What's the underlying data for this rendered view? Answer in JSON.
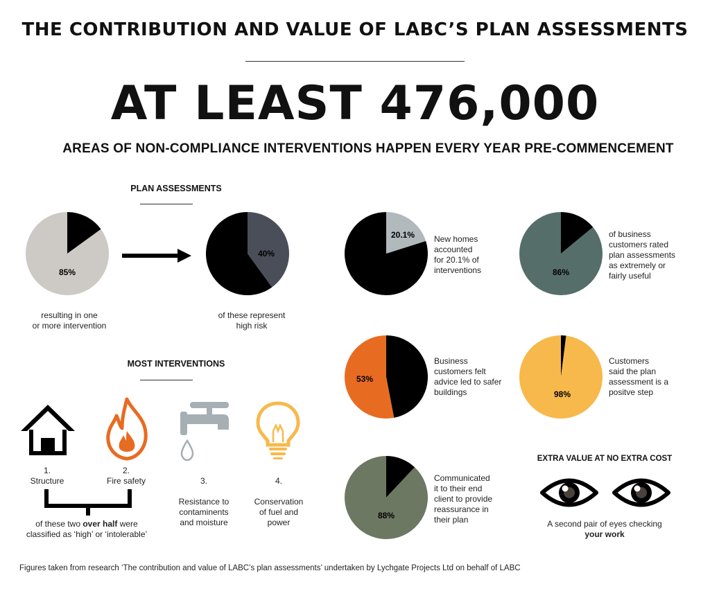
{
  "header": {
    "title": "THE CONTRIBUTION AND VALUE OF LABC’S PLAN ASSESSMENTS",
    "headline": "AT LEAST 476,000",
    "subheadline": "AREAS OF NON-COMPLIANCE INTERVENTIONS HAPPEN EVERY YEAR PRE-COMMENCEMENT"
  },
  "plan_assessments": {
    "heading": "PLAN ASSESSMENTS",
    "caption_1": "resulting in one\nor more intervention",
    "caption_2": "of these represent\nhigh risk"
  },
  "most_interventions": {
    "heading": "MOST INTERVENTIONS",
    "items": [
      {
        "number": "1.",
        "label": "Structure",
        "icon": "house-icon"
      },
      {
        "number": "2.",
        "label": "Fire safety",
        "icon": "flame-icon"
      },
      {
        "number": "3.",
        "label": "Resistance to\ncontaminents\nand moisture",
        "icon": "tap-icon"
      },
      {
        "number": "4.",
        "label": "Conservation\nof fuel and\npower",
        "icon": "lightbulb-icon"
      }
    ],
    "note_pre": "of these two ",
    "note_bold": "over half",
    "note_post": " were\nclassified as ‘high’ or ‘intolerable’"
  },
  "extra_value": {
    "heading": "EXTRA VALUE AT NO EXTRA COST",
    "caption_1": "A second pair of eyes checking",
    "caption_bold": "your work",
    "icon": "eye-icon"
  },
  "footer": "Figures taken from research ‘The contribution and value of LABC’s plan assessments’ undertaken by Lychgate Projects Ltd on behalf of LABC",
  "chart_data": [
    {
      "type": "pie",
      "id": "interventions",
      "values": [
        85,
        15
      ],
      "colors": [
        "#cdc9c5",
        "#000000"
      ],
      "label": "85%",
      "caption": "resulting in one\nor more intervention"
    },
    {
      "type": "pie",
      "id": "high-risk",
      "values": [
        40,
        60
      ],
      "colors": [
        "#4a4e58",
        "#000000"
      ],
      "label": "40%",
      "caption": "of these represent\nhigh risk"
    },
    {
      "type": "pie",
      "id": "new-homes",
      "values": [
        20.1,
        79.9
      ],
      "colors": [
        "#b1b9bd",
        "#000000"
      ],
      "label": "20.1%",
      "caption": "New homes\naccounted\nfor 20.1% of\ninterventions"
    },
    {
      "type": "pie",
      "id": "useful",
      "values": [
        86,
        14
      ],
      "colors": [
        "#566e69",
        "#000000"
      ],
      "label": "86%",
      "caption": "of business\ncustomers rated\nplan assessments\nas extremely or\nfairly useful"
    },
    {
      "type": "pie",
      "id": "safer-buildings",
      "values": [
        53,
        47
      ],
      "colors": [
        "#e86b22",
        "#000000"
      ],
      "label": "53%",
      "caption": "Business\ncustomers felt\nadvice led to safer\nbuildings"
    },
    {
      "type": "pie",
      "id": "positive-step",
      "values": [
        98,
        2
      ],
      "colors": [
        "#f7b94b",
        "#000000"
      ],
      "label": "98%",
      "caption": "Customers\nsaid the plan\nassessment is a\npositve step"
    },
    {
      "type": "pie",
      "id": "reassurance",
      "values": [
        88,
        12
      ],
      "colors": [
        "#6d7863",
        "#000000"
      ],
      "label": "88%",
      "caption": "Communicated\nit to their end\nclient to provide\nreassurance in\ntheir plan"
    }
  ]
}
